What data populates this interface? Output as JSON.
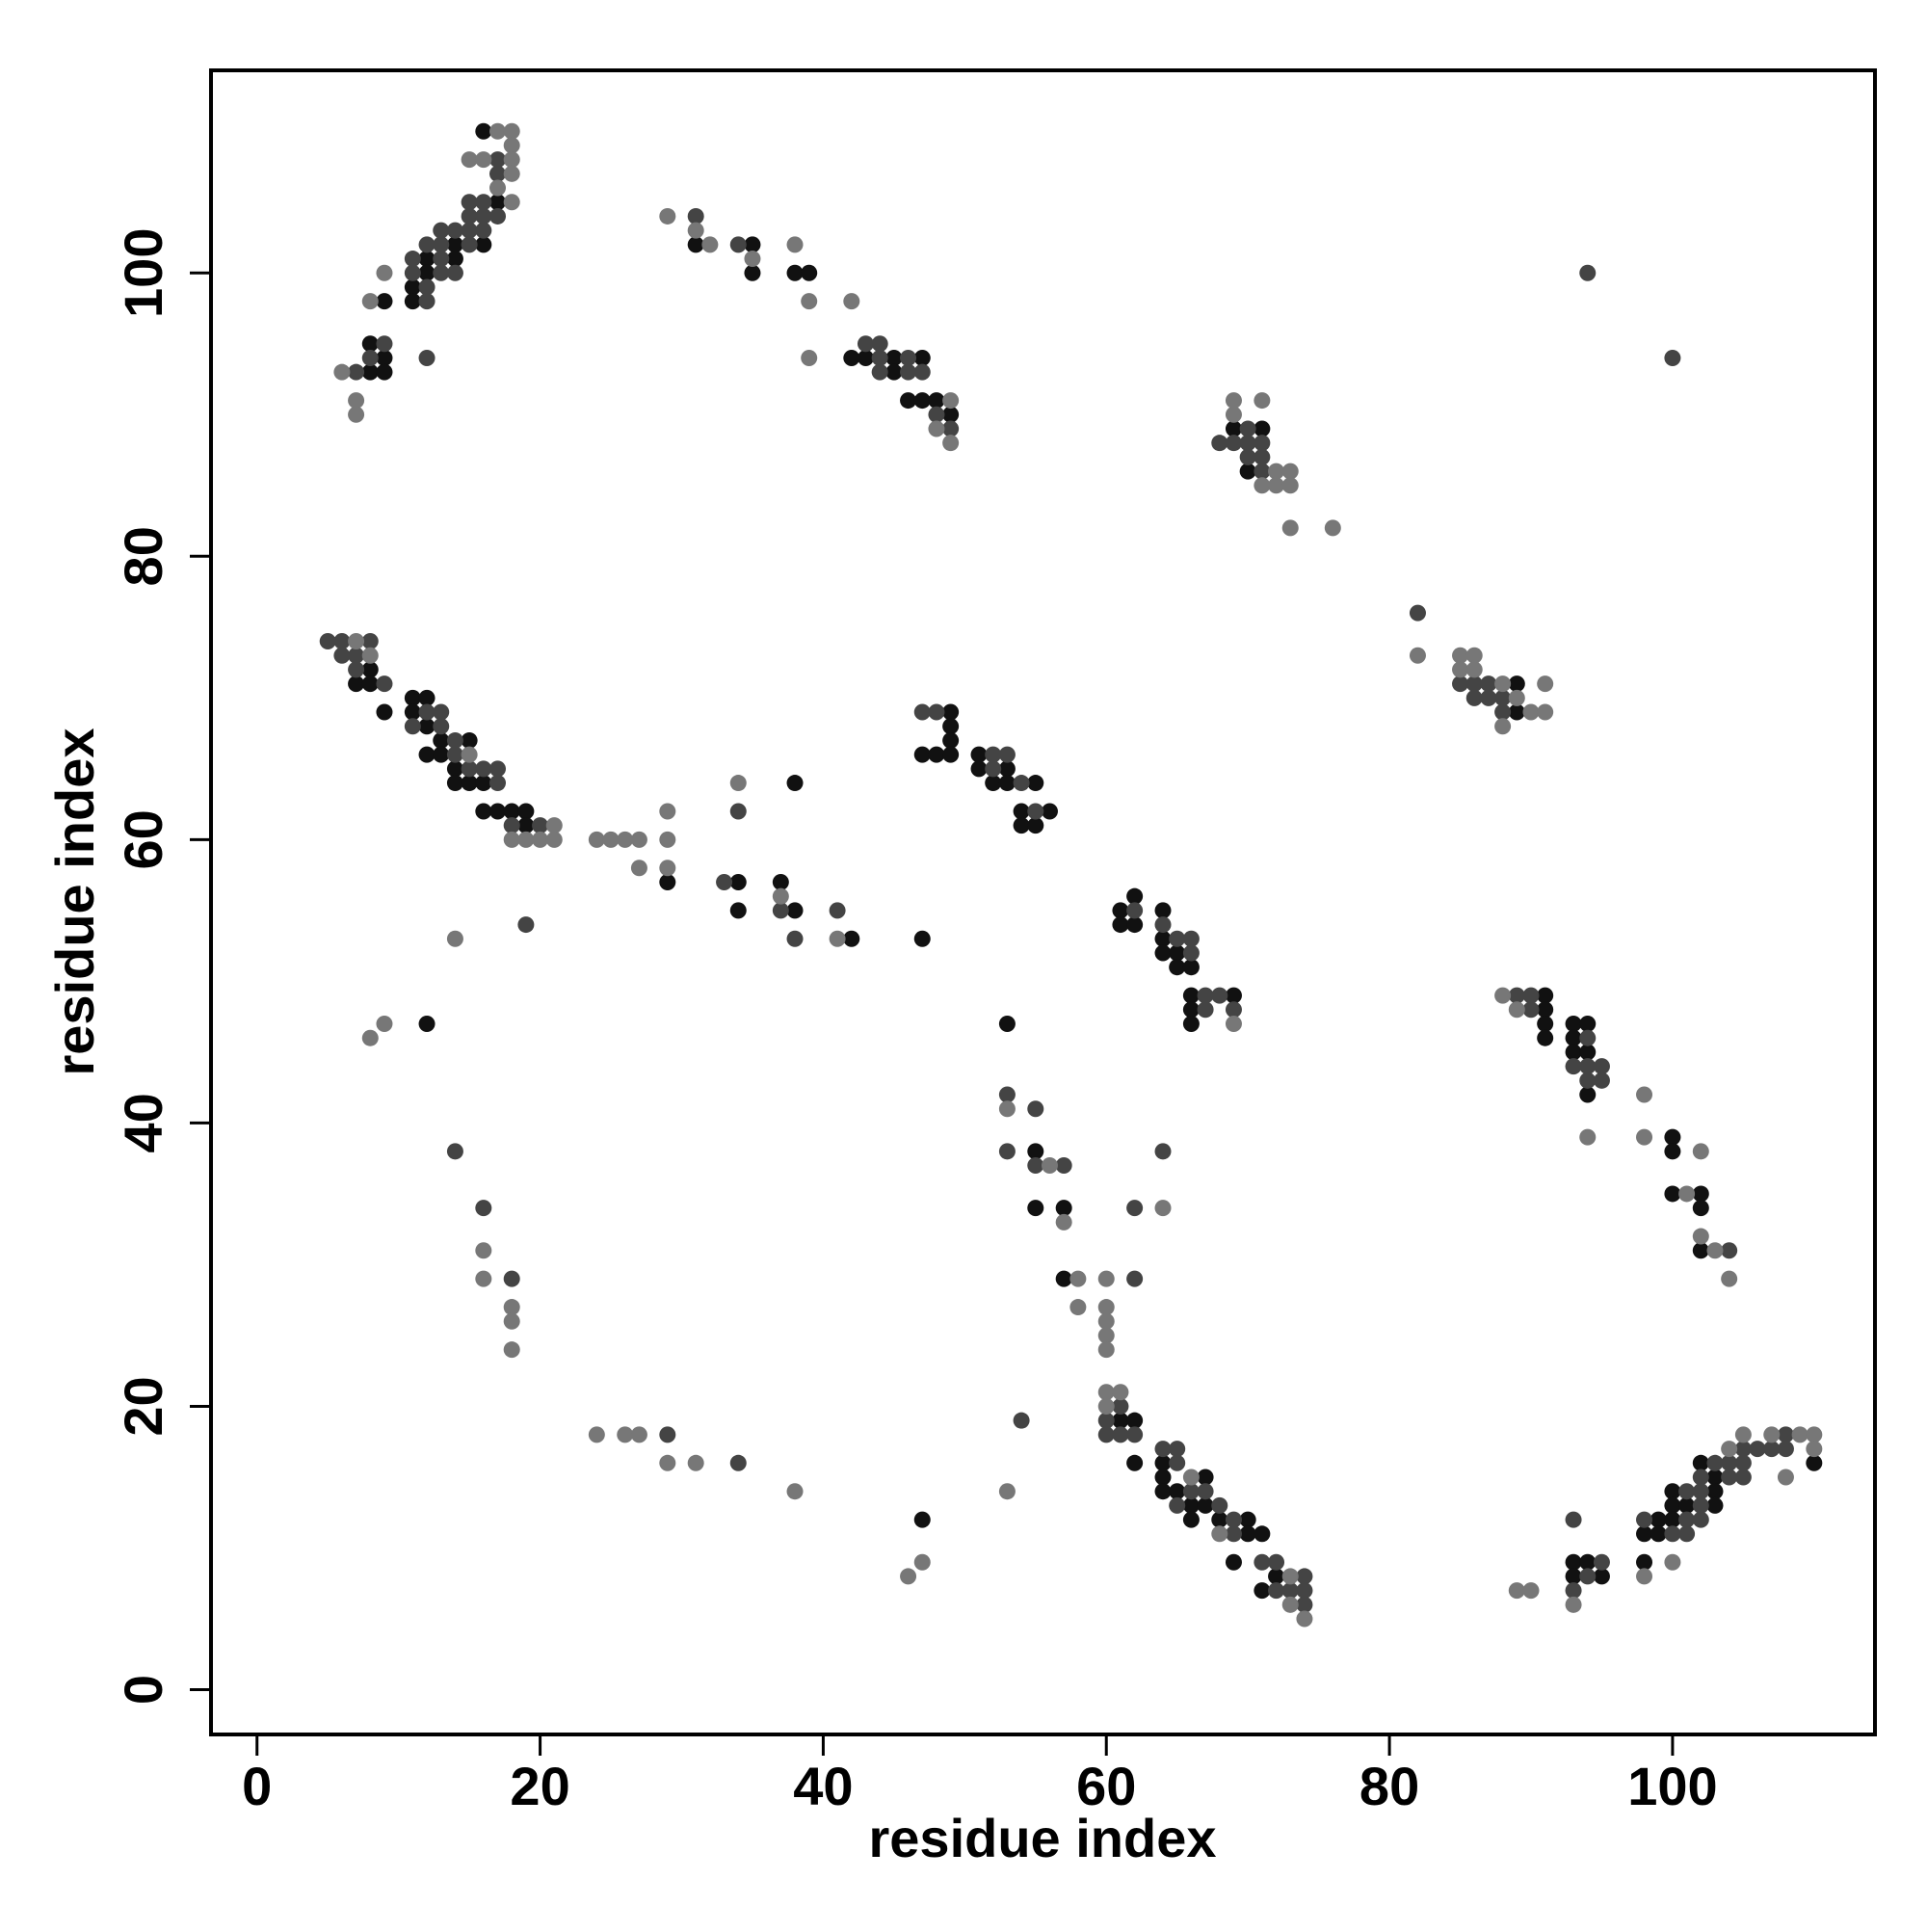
{
  "chart_data": {
    "type": "scatter",
    "xlabel": "residue index",
    "ylabel": "residue index",
    "xlim": [
      -3.25,
      114.3
    ],
    "ylim": [
      -3.16,
      114.3
    ],
    "xticks": [
      0,
      20,
      40,
      60,
      80,
      100
    ],
    "yticks": [
      0,
      20,
      40,
      60,
      80,
      100
    ],
    "grid": false,
    "series": [
      {
        "color": "#111111",
        "x": [
          16,
          17,
          14,
          16,
          12,
          14,
          12,
          11,
          9,
          11,
          8,
          9,
          8,
          9,
          31,
          35,
          35,
          38,
          39,
          42,
          43,
          45,
          45,
          47,
          46,
          47,
          48,
          49,
          69,
          71,
          70,
          89,
          89,
          8,
          7,
          8,
          9,
          11,
          12,
          11,
          12,
          13,
          15,
          12,
          13,
          14,
          14,
          15,
          16,
          16,
          17,
          18,
          19,
          19,
          29,
          34,
          34,
          37,
          38,
          38,
          42,
          47,
          12,
          49,
          49,
          49,
          47,
          48,
          49,
          51,
          51,
          53,
          52,
          53,
          55,
          54,
          56,
          54,
          55,
          62,
          61,
          64,
          61,
          62,
          64,
          64,
          65,
          65,
          66,
          66,
          69,
          66,
          66,
          91,
          91,
          91,
          91,
          93,
          94,
          93,
          93,
          94,
          94,
          100,
          100,
          100,
          102,
          102,
          102,
          53,
          55,
          55,
          57,
          57,
          61,
          62,
          62,
          64,
          64,
          67,
          64,
          65,
          66,
          67,
          66,
          68,
          70,
          70,
          71,
          69,
          72,
          71,
          47,
          93,
          94,
          93,
          95,
          99,
          98,
          99,
          98,
          100,
          100,
          101,
          100,
          102,
          103,
          103,
          103,
          110
        ],
        "y": [
          110,
          105,
          102,
          102,
          101,
          101,
          100,
          99,
          98,
          98,
          95,
          94,
          93,
          93,
          102,
          102,
          100,
          100,
          100,
          94,
          94,
          94,
          93,
          94,
          91,
          91,
          91,
          90,
          89,
          89,
          86,
          71,
          69,
          72,
          71,
          71,
          69,
          70,
          70,
          69,
          68,
          67,
          67,
          66,
          66,
          65,
          64,
          64,
          64,
          62,
          62,
          62,
          62,
          61,
          57,
          57,
          55,
          57,
          55,
          64,
          53,
          53,
          47,
          69,
          68,
          67,
          66,
          66,
          66,
          66,
          65,
          65,
          64,
          64,
          64,
          62,
          62,
          61,
          61,
          56,
          55,
          55,
          54,
          54,
          53,
          52,
          52,
          51,
          51,
          49,
          49,
          48,
          47,
          49,
          48,
          47,
          46,
          47,
          47,
          46,
          45,
          45,
          42,
          39,
          38,
          35,
          35,
          34,
          31,
          47,
          38,
          34,
          34,
          29,
          19,
          19,
          16,
          16,
          15,
          15,
          14,
          14,
          13,
          13,
          12,
          12,
          12,
          11,
          11,
          9,
          8,
          7,
          12,
          9,
          9,
          8,
          8,
          12,
          11,
          11,
          9,
          14,
          13,
          13,
          12,
          16,
          15,
          14,
          13,
          16
        ]
      },
      {
        "color": "#444444",
        "x": [
          17,
          17,
          15,
          16,
          15,
          16,
          17,
          13,
          14,
          15,
          16,
          12,
          13,
          15,
          11,
          13,
          11,
          13,
          14,
          12,
          12,
          9,
          8,
          12,
          7,
          31,
          34,
          43,
          44,
          44,
          44,
          46,
          46,
          47,
          48,
          49,
          68,
          70,
          69,
          70,
          71,
          70,
          71,
          71,
          94,
          100,
          82,
          85,
          86,
          87,
          86,
          87,
          88,
          88,
          5,
          6,
          8,
          6,
          7,
          7,
          9,
          12,
          13,
          11,
          13,
          14,
          14,
          15,
          16,
          17,
          17,
          18,
          20,
          33,
          34,
          37,
          38,
          41,
          19,
          47,
          48,
          52,
          53,
          52,
          54,
          55,
          62,
          64,
          65,
          66,
          66,
          67,
          68,
          67,
          69,
          89,
          90,
          90,
          94,
          93,
          94,
          95,
          94,
          95,
          104,
          53,
          55,
          53,
          55,
          57,
          64,
          62,
          62,
          14,
          16,
          18,
          61,
          60,
          60,
          61,
          62,
          64,
          65,
          65,
          66,
          67,
          65,
          68,
          69,
          69,
          71,
          72,
          74,
          72,
          73,
          74,
          74,
          29,
          34,
          54,
          93,
          95,
          94,
          93,
          98,
          101,
          101,
          102,
          100,
          101,
          103,
          102,
          102,
          102,
          104,
          105,
          106,
          105,
          104,
          105,
          108,
          107,
          108
        ],
        "y": [
          108,
          107,
          105,
          105,
          104,
          104,
          104,
          103,
          103,
          103,
          103,
          102,
          102,
          102,
          101,
          101,
          100,
          100,
          100,
          99,
          98,
          95,
          94,
          94,
          93,
          104,
          102,
          95,
          95,
          94,
          93,
          94,
          93,
          93,
          90,
          89,
          88,
          89,
          88,
          88,
          88,
          87,
          87,
          86,
          100,
          94,
          76,
          71,
          71,
          71,
          70,
          70,
          70,
          69,
          74,
          74,
          74,
          73,
          73,
          72,
          71,
          69,
          69,
          68,
          68,
          67,
          66,
          65,
          65,
          65,
          64,
          61,
          61,
          57,
          62,
          55,
          53,
          55,
          54,
          69,
          69,
          66,
          66,
          65,
          64,
          62,
          55,
          54,
          53,
          53,
          52,
          49,
          49,
          48,
          48,
          49,
          49,
          48,
          46,
          44,
          44,
          44,
          43,
          43,
          31,
          42,
          41,
          38,
          37,
          37,
          38,
          34,
          29,
          38,
          34,
          29,
          20,
          19,
          18,
          18,
          18,
          17,
          17,
          16,
          14,
          14,
          13,
          13,
          12,
          11,
          9,
          9,
          8,
          7,
          7,
          7,
          6,
          18,
          16,
          19,
          12,
          9,
          8,
          7,
          12,
          14,
          12,
          12,
          11,
          11,
          16,
          15,
          14,
          13,
          16,
          16,
          17,
          17,
          15,
          15,
          18,
          17,
          17
        ]
      },
      {
        "color": "#777777",
        "x": [
          17,
          18,
          18,
          15,
          16,
          18,
          18,
          17,
          18,
          9,
          8,
          6,
          7,
          7,
          29,
          31,
          32,
          35,
          38,
          39,
          39,
          42,
          49,
          48,
          49,
          69,
          71,
          69,
          72,
          73,
          71,
          72,
          73,
          73,
          76,
          82,
          85,
          86,
          85,
          86,
          88,
          91,
          89,
          90,
          91,
          88,
          7,
          8,
          15,
          21,
          18,
          19,
          20,
          21,
          24,
          25,
          26,
          27,
          27,
          29,
          29,
          29,
          34,
          37,
          41,
          14,
          9,
          8,
          69,
          88,
          89,
          98,
          94,
          98,
          102,
          101,
          102,
          103,
          104,
          53,
          56,
          57,
          64,
          58,
          60,
          58,
          60,
          60,
          60,
          60,
          16,
          16,
          18,
          18,
          18,
          60,
          61,
          60,
          66,
          68,
          73,
          73,
          74,
          24,
          26,
          27,
          29,
          31,
          38,
          47,
          46,
          53,
          89,
          90,
          93,
          98,
          100,
          104,
          105,
          107,
          109,
          110,
          108,
          110
        ],
        "y": [
          110,
          110,
          109,
          108,
          108,
          108,
          107,
          106,
          105,
          100,
          98,
          93,
          91,
          90,
          104,
          103,
          102,
          101,
          102,
          98,
          94,
          98,
          91,
          89,
          88,
          91,
          91,
          90,
          86,
          86,
          85,
          85,
          85,
          82,
          82,
          73,
          73,
          73,
          72,
          72,
          71,
          71,
          70,
          69,
          69,
          68,
          74,
          73,
          66,
          61,
          60,
          60,
          60,
          60,
          60,
          60,
          60,
          60,
          58,
          62,
          60,
          58,
          64,
          56,
          53,
          53,
          47,
          46,
          47,
          49,
          48,
          42,
          39,
          39,
          38,
          35,
          32,
          31,
          29,
          41,
          37,
          33,
          34,
          29,
          29,
          27,
          27,
          26,
          25,
          24,
          31,
          29,
          27,
          26,
          24,
          21,
          21,
          20,
          15,
          11,
          8,
          6,
          5,
          18,
          18,
          18,
          16,
          16,
          14,
          9,
          8,
          14,
          7,
          7,
          6,
          8,
          9,
          17,
          18,
          18,
          18,
          18,
          15,
          17
        ]
      }
    ]
  }
}
